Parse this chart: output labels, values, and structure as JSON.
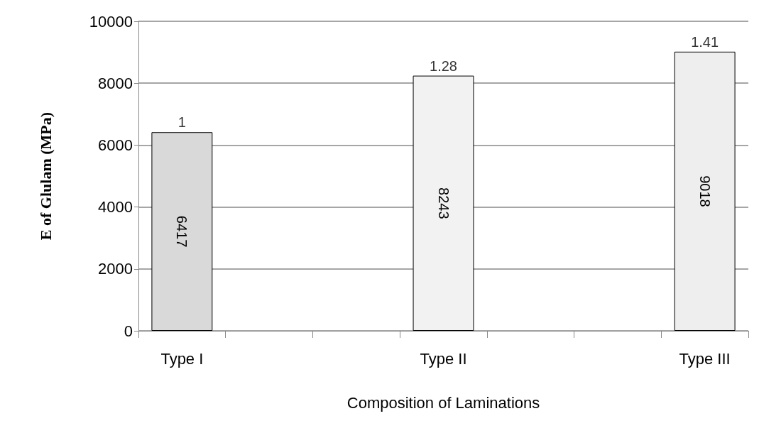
{
  "chart_data": {
    "type": "bar",
    "xlabel": "Composition of Laminations",
    "ylabel": "E of Glulam (MPa)",
    "categories": [
      "Type I",
      null,
      null,
      "Type II",
      null,
      null,
      "Type III"
    ],
    "values": [
      6417,
      null,
      null,
      8243,
      null,
      null,
      9018
    ],
    "colors": [
      "#d9d9d9",
      null,
      null,
      "#f2f2f2",
      null,
      null,
      "#eeeeee"
    ],
    "annotations": [
      {
        "text": "1",
        "x": "Type I",
        "y": 6417
      },
      {
        "text": "1.28",
        "x": "Type II",
        "y": 8243
      },
      {
        "text": "1.41",
        "x": "Type III",
        "y": 9018
      }
    ],
    "data_labels": true,
    "ylim": [
      0,
      10000
    ],
    "yticks": [
      0,
      2000,
      4000,
      6000,
      8000,
      10000
    ],
    "grid": "y"
  }
}
